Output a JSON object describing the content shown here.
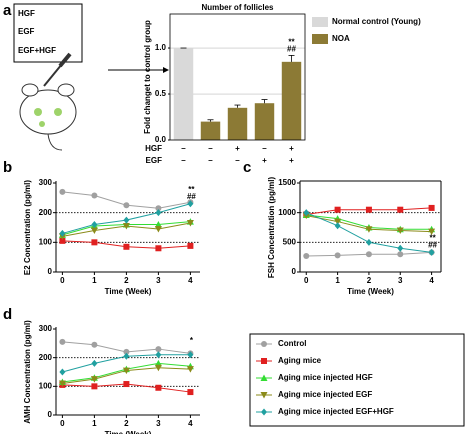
{
  "panel_labels": [
    "a",
    "b",
    "c",
    "d"
  ],
  "treatment_box": [
    "HGF",
    "EGF",
    "EGF+HGF"
  ],
  "chart_data": [
    {
      "type": "bar",
      "title": "Number of follicles",
      "y_label": "Fold changet to control group",
      "categories": [
        null,
        null,
        null,
        null,
        null
      ],
      "series": [
        {
          "name": "Normal control (Young)",
          "color": "#d9d9d9",
          "values": [
            1.0,
            null,
            null,
            null,
            null
          ]
        },
        {
          "name": "NOA",
          "color": "#8c7a35",
          "values": [
            null,
            0.2,
            0.35,
            0.4,
            0.85
          ]
        }
      ],
      "errors": [
        0,
        0.02,
        0.03,
        0.04,
        0.07
      ],
      "ylim": [
        0,
        1.37
      ],
      "yticks": [
        {
          "value": 0,
          "label": "0.0"
        },
        {
          "value": 0.5,
          "label": "0.5"
        },
        {
          "value": 1,
          "label": "1.0"
        }
      ],
      "grid": true,
      "annotations": [
        "**",
        "##"
      ],
      "treatment_table": [
        {
          "name": "HGF",
          "marks": [
            "–",
            "–",
            "+",
            "–",
            "+"
          ]
        },
        {
          "name": "EGF",
          "marks": [
            "–",
            "–",
            "–",
            "+",
            "+"
          ]
        }
      ]
    },
    {
      "type": "line",
      "y_label": "E2 Concentration (pg/ml)",
      "x_label": "Time (Week)",
      "x": [
        0,
        1,
        2,
        3,
        4
      ],
      "xlim": [
        -0.2,
        4.3
      ],
      "xticks": [
        0,
        1,
        2,
        3,
        4
      ],
      "ylim": [
        0,
        300
      ],
      "yticks": [
        0,
        100,
        200,
        300
      ],
      "hlines": [
        100,
        200
      ],
      "series": [
        {
          "name": "Control",
          "color": "#a0a0a0",
          "marker": "circle",
          "values": [
            270,
            258,
            225,
            215,
            235
          ]
        },
        {
          "name": "Aging mice",
          "color": "#e02020",
          "marker": "square",
          "values": [
            105,
            100,
            85,
            80,
            88
          ]
        },
        {
          "name": "Aging mice injected HGF",
          "color": "#33dd33",
          "marker": "triangle",
          "values": [
            125,
            155,
            160,
            160,
            170
          ]
        },
        {
          "name": "Aging mice injected EGF",
          "color": "#8b8b1a",
          "marker": "triangle-down",
          "values": [
            120,
            140,
            155,
            145,
            165
          ]
        },
        {
          "name": "Aging mice injected EGF+HGF",
          "color": "#20a0a0",
          "marker": "diamond",
          "values": [
            130,
            160,
            175,
            200,
            230
          ]
        }
      ],
      "annotations": [
        "**",
        "##"
      ]
    },
    {
      "type": "line",
      "y_label": "FSH Concentration (pg/ml)",
      "x_label": "Time (Week)",
      "x": [
        0,
        1,
        2,
        3,
        4
      ],
      "xlim": [
        -0.2,
        4.3
      ],
      "xticks": [
        0,
        1,
        2,
        3,
        4
      ],
      "ylim": [
        0,
        1500
      ],
      "yticks": [
        0,
        500,
        1000,
        1500
      ],
      "hlines": [
        500,
        1000
      ],
      "series": [
        {
          "name": "Control",
          "color": "#a0a0a0",
          "marker": "circle",
          "values": [
            270,
            280,
            300,
            300,
            330
          ]
        },
        {
          "name": "Aging mice",
          "color": "#e02020",
          "marker": "square",
          "values": [
            970,
            1050,
            1050,
            1050,
            1080
          ]
        },
        {
          "name": "Aging mice injected HGF",
          "color": "#33dd33",
          "marker": "triangle",
          "values": [
            960,
            900,
            750,
            720,
            720
          ]
        },
        {
          "name": "Aging mice injected EGF",
          "color": "#8b8b1a",
          "marker": "triangle-down",
          "values": [
            950,
            850,
            720,
            700,
            680
          ]
        },
        {
          "name": "Aging mice injected EGF+HGF",
          "color": "#20a0a0",
          "marker": "diamond",
          "values": [
            1000,
            780,
            500,
            400,
            330
          ]
        }
      ],
      "annotations": [
        "**",
        "##"
      ]
    },
    {
      "type": "line",
      "y_label": "AMH Concentration (pg/ml)",
      "x_label": "Time (Week)",
      "x": [
        0,
        1,
        2,
        3,
        4
      ],
      "xlim": [
        -0.2,
        4.3
      ],
      "xticks": [
        0,
        1,
        2,
        3,
        4
      ],
      "ylim": [
        0,
        300
      ],
      "yticks": [
        0,
        100,
        200,
        300
      ],
      "hlines": [
        100,
        200
      ],
      "series": [
        {
          "name": "Control",
          "color": "#a0a0a0",
          "marker": "circle",
          "values": [
            255,
            245,
            220,
            230,
            215
          ]
        },
        {
          "name": "Aging mice",
          "color": "#e02020",
          "marker": "square",
          "values": [
            105,
            100,
            108,
            95,
            80
          ]
        },
        {
          "name": "Aging mice injected HGF",
          "color": "#33dd33",
          "marker": "triangle",
          "values": [
            115,
            130,
            160,
            180,
            170
          ]
        },
        {
          "name": "Aging mice injected EGF",
          "color": "#8b8b1a",
          "marker": "triangle-down",
          "values": [
            110,
            125,
            155,
            165,
            160
          ]
        },
        {
          "name": "Aging mice injected EGF+HGF",
          "color": "#20a0a0",
          "marker": "diamond",
          "values": [
            150,
            180,
            205,
            210,
            210
          ]
        }
      ],
      "annotations": [
        "*"
      ]
    }
  ]
}
